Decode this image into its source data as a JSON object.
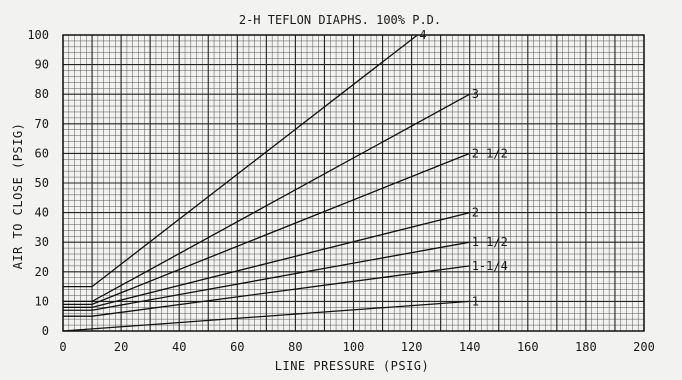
{
  "chart_data": {
    "type": "line",
    "title": "2-H TEFLON DIAPHS. 100% P.D.",
    "xlabel": "LINE PRESSURE (PSIG)",
    "ylabel": "AIR TO CLOSE (PSIG)",
    "xlim": [
      0,
      200
    ],
    "ylim": [
      0,
      100
    ],
    "x_ticks": [
      "0",
      "20",
      "40",
      "60",
      "80",
      "100",
      "120",
      "140",
      "160",
      "180",
      "200"
    ],
    "y_ticks": [
      "0",
      "10",
      "20",
      "30",
      "40",
      "50",
      "60",
      "70",
      "80",
      "90",
      "100"
    ],
    "grid": true,
    "series": [
      {
        "name": "4",
        "points": [
          [
            0,
            15
          ],
          [
            10,
            15
          ],
          [
            122,
            100
          ]
        ]
      },
      {
        "name": "3",
        "points": [
          [
            0,
            10
          ],
          [
            10,
            10
          ],
          [
            140,
            80
          ]
        ]
      },
      {
        "name": "2 1/2",
        "points": [
          [
            0,
            9
          ],
          [
            10,
            9
          ],
          [
            140,
            60
          ]
        ]
      },
      {
        "name": "2",
        "points": [
          [
            0,
            8
          ],
          [
            10,
            8
          ],
          [
            140,
            40
          ]
        ]
      },
      {
        "name": "1 1/2",
        "points": [
          [
            0,
            7
          ],
          [
            10,
            7
          ],
          [
            140,
            30
          ]
        ]
      },
      {
        "name": "1-1/4",
        "points": [
          [
            0,
            5
          ],
          [
            10,
            5
          ],
          [
            140,
            22
          ]
        ]
      },
      {
        "name": "1",
        "points": [
          [
            0,
            0
          ],
          [
            140,
            10
          ]
        ]
      }
    ]
  }
}
